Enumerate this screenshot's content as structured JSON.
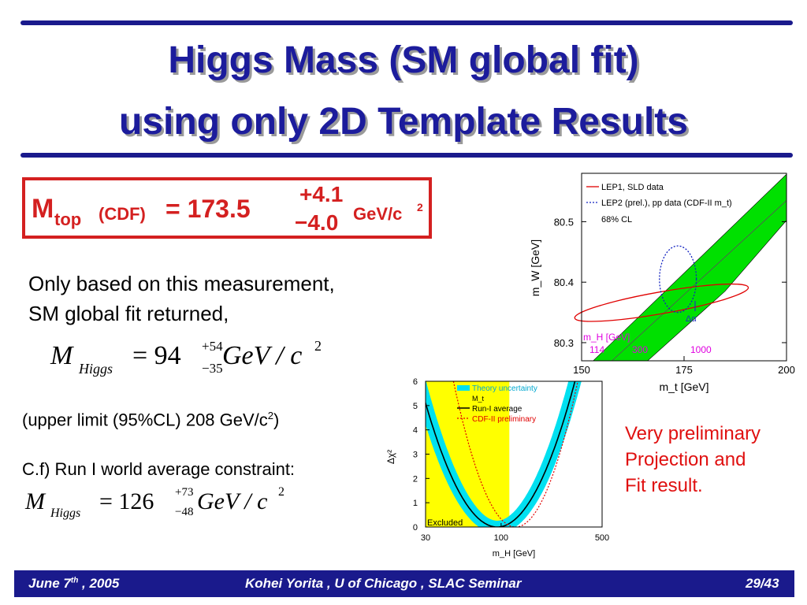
{
  "title": {
    "line1": "Higgs Mass (SM global fit)",
    "line2": "using only 2D Template Results"
  },
  "measurement": {
    "m": "M",
    "sub": "top",
    "source": "(CDF)",
    "equals_value": "= 173.5",
    "err_plus": "+4.1",
    "err_minus": "−4.0",
    "unit": "GeV/c",
    "unit_exp": "2"
  },
  "text": {
    "line1": "Only based on this measurement,",
    "line2": "SM global fit returned,",
    "upper_limit": "(upper limit (95%CL) 208 GeV/c",
    "upper_limit_exp": "2",
    "upper_limit_close": ")",
    "cf": "C.f) Run I world average constraint:"
  },
  "formula1": {
    "lhs": "M",
    "sub": "Higgs",
    "eq": "= 94",
    "up": "+54",
    "down": "−35",
    "unit": "GeV / c",
    "exp": "2"
  },
  "formula2": {
    "lhs": "M",
    "sub": "Higgs",
    "eq": "= 126",
    "up": "+73",
    "down": "−48",
    "unit": "GeV / c",
    "exp": "2"
  },
  "note": {
    "line1": "Very preliminary",
    "line2": "Projection and",
    "line3": "Fit result."
  },
  "footer": {
    "date": "June 7",
    "date_sup": "th",
    "date_rest": " , 2005",
    "center": "Kohei Yorita , U of Chicago , SLAC Seminar",
    "page": "29/43"
  },
  "colors": {
    "title": "#1c1c9c",
    "accent_red": "#e01010",
    "footer_bg": "#1a1a8c",
    "band_green": "#00e000",
    "band_cyan": "#00e0f0",
    "excluded": "#ffff00"
  },
  "chart_data": [
    {
      "type": "scatter",
      "xlabel": "m_t  [GeV]",
      "ylabel": "m_W  [GeV]",
      "xlim": [
        150,
        200
      ],
      "ylim": [
        80.27,
        80.58
      ],
      "xticks": [
        150,
        175,
        200
      ],
      "yticks": [
        80.3,
        80.4,
        80.5
      ],
      "legend_placement": "top-left",
      "legend": [
        "LEP1, SLD data",
        "LEP2 (prel.), pp data (CDF-II m_t)",
        "68% CL"
      ],
      "series": [
        {
          "name": "LEP1, SLD data",
          "kind": "ellipse",
          "center": [
            169.5,
            80.366
          ],
          "half_x": 21.5,
          "half_y": 0.018,
          "tilt_deg": -10,
          "color": "#e00000"
        },
        {
          "name": "LEP2 (prel.), pp data (CDF-II m_t)",
          "kind": "ellipse",
          "center": [
            173.5,
            80.405
          ],
          "half_x": 4.5,
          "half_y": 0.055,
          "tilt_deg": 0,
          "color": "#1020c0"
        }
      ],
      "band": {
        "mh_label": "m_H  [GeV]",
        "mh_values": [
          "114",
          "300",
          "1000"
        ],
        "color": "#00e000"
      },
      "annotation": "Δα"
    },
    {
      "type": "line",
      "xlabel": "m_H [GeV]",
      "ylabel": "Δχ²",
      "xscale": "log",
      "xlim": [
        30,
        500
      ],
      "ylim": [
        0,
        6
      ],
      "xticks": [
        30,
        100,
        500
      ],
      "yticks": [
        0,
        1,
        2,
        3,
        4,
        5,
        6
      ],
      "legend_placement": "top-right",
      "legend": [
        "Theory uncertainty",
        "M_t",
        "Run-I average",
        "CDF-II preliminary"
      ],
      "series": [
        {
          "name": "Run-I average",
          "minimum_x": 94,
          "width": 0.75,
          "color": "#000000"
        },
        {
          "name": "CDF-II preliminary",
          "minimum_x": 126,
          "width": 0.6,
          "color": "#e00000"
        }
      ],
      "excluded_region": [
        30,
        114
      ],
      "excluded_label": "Excluded"
    }
  ]
}
